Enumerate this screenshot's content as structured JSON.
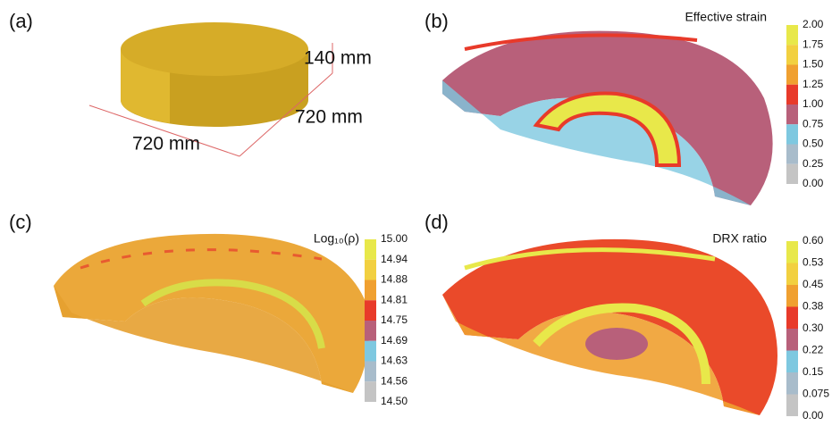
{
  "panels": [
    {
      "label": "(a)",
      "dimensions": [
        "140 mm",
        "720 mm",
        "720 mm"
      ]
    },
    {
      "label": "(b)",
      "colorbar": {
        "title": "Effective strain",
        "ticks": [
          "2.00",
          "1.75",
          "1.50",
          "1.25",
          "1.00",
          "0.75",
          "0.50",
          "0.25",
          "0.00"
        ]
      }
    },
    {
      "label": "(c)",
      "colorbar": {
        "title": "Log₁₀(ρ)",
        "ticks": [
          "15.00",
          "14.94",
          "14.88",
          "14.81",
          "14.75",
          "14.69",
          "14.63",
          "14.56",
          "14.50"
        ]
      }
    },
    {
      "label": "(d)",
      "colorbar": {
        "title": "DRX ratio",
        "ticks": [
          "0.60",
          "0.53",
          "0.45",
          "0.38",
          "0.30",
          "0.22",
          "0.15",
          "0.075",
          "0.00"
        ]
      }
    }
  ]
}
